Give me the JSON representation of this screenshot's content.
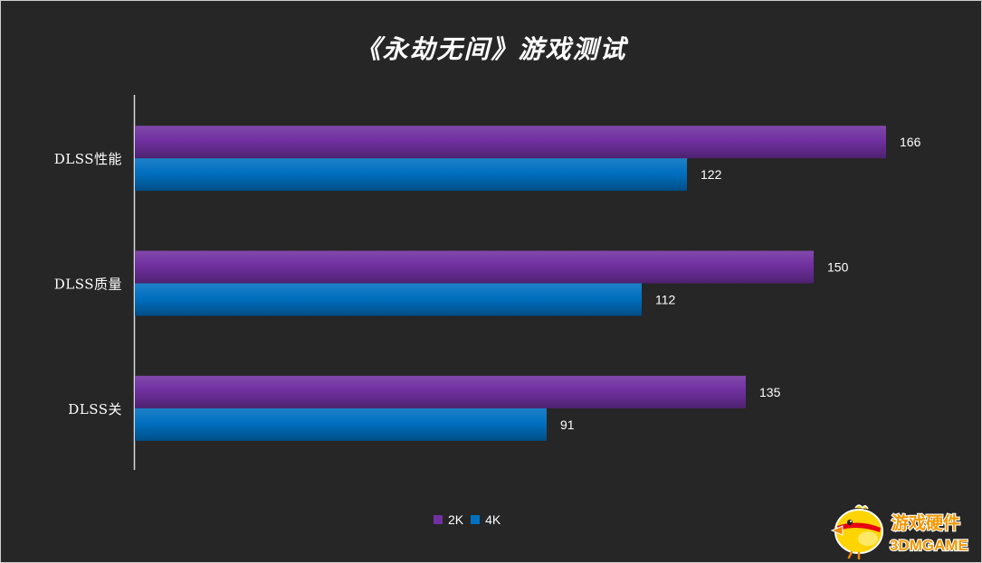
{
  "chart_data": {
    "type": "bar",
    "orientation": "horizontal",
    "title": "《永劫无间》游戏测试",
    "categories": [
      "DLSS性能",
      "DLSS质量",
      "DLSS关"
    ],
    "series": [
      {
        "name": "2K",
        "values": [
          166,
          150,
          135
        ],
        "color": "#7030A0"
      },
      {
        "name": "4K",
        "values": [
          122,
          112,
          91
        ],
        "color": "#0070C0"
      }
    ],
    "xlim": [
      0,
      180
    ],
    "grid": false,
    "legend": "bottom-center",
    "data_labels": true
  },
  "colors": {
    "background": "#262626",
    "text": "#FFFFFF",
    "axis": "#D9D9D9"
  },
  "watermark": {
    "line1": "游戏硬件",
    "line2": "3DMGAME"
  }
}
